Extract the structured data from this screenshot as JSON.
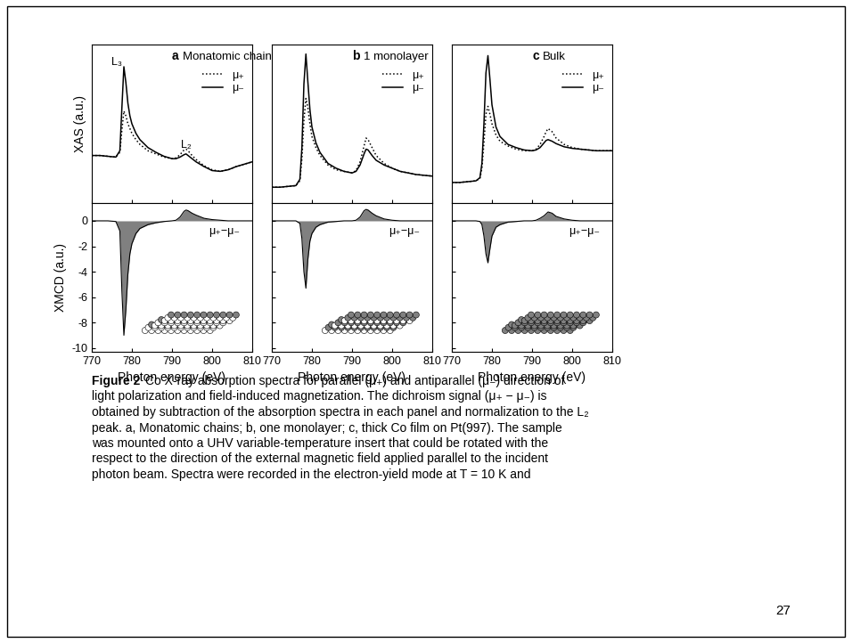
{
  "chart_data": [
    {
      "type": "line",
      "panel": "a",
      "title": "Monatomic chains",
      "ylabel": "XAS (a.u.)",
      "xlim": [
        770,
        810
      ],
      "xticks": [
        770,
        780,
        790,
        800,
        810
      ],
      "ylim": [
        0,
        10
      ],
      "yticks": [],
      "tick_labels": false,
      "legend": "upper right",
      "x": [
        770,
        772,
        774,
        776,
        777,
        777.5,
        778,
        778.5,
        779,
        779.5,
        780,
        781,
        782,
        784,
        786,
        788,
        790,
        791,
        792,
        793,
        793.5,
        794,
        795,
        796,
        798,
        800,
        802,
        804,
        806,
        808,
        810
      ],
      "series": [
        {
          "name": "μ₊",
          "color": "#000000",
          "line_style": "dotted",
          "values": [
            3.0,
            3.0,
            2.95,
            2.9,
            3.2,
            4.6,
            5.8,
            5.5,
            5.0,
            4.7,
            4.4,
            4.0,
            3.7,
            3.3,
            3.1,
            2.9,
            2.8,
            2.85,
            3.05,
            3.35,
            3.4,
            3.3,
            3.0,
            2.75,
            2.35,
            2.1,
            2.0,
            2.1,
            2.3,
            2.45,
            2.6
          ]
        },
        {
          "name": "μ₋",
          "color": "#000000",
          "line_style": "solid",
          "values": [
            3.0,
            3.0,
            2.95,
            2.9,
            3.3,
            6.0,
            8.6,
            7.6,
            6.3,
            5.5,
            5.0,
            4.4,
            4.0,
            3.5,
            3.2,
            2.95,
            2.8,
            2.8,
            2.9,
            3.05,
            3.1,
            3.0,
            2.8,
            2.6,
            2.3,
            2.05,
            2.0,
            2.1,
            2.3,
            2.45,
            2.6
          ]
        }
      ],
      "annotations": [
        {
          "text": "L₃",
          "x": 776.2,
          "y": 9.2
        },
        {
          "text": "L₂",
          "x": 793.5,
          "y": 4.0
        }
      ]
    },
    {
      "type": "area",
      "panel": "a",
      "ylabel": "XMCD (a.u.)",
      "xlabel": "Photon energy (eV)",
      "xlim": [
        770,
        810
      ],
      "xticks": [
        770,
        780,
        790,
        800,
        810
      ],
      "ylim": [
        -10.3,
        1.4
      ],
      "yticks": [
        -10,
        -8,
        -6,
        -4,
        -2,
        0
      ],
      "color": "#808080",
      "x": [
        770,
        772,
        774,
        776,
        777,
        777.5,
        778,
        778.5,
        779,
        779.5,
        780,
        781,
        782,
        784,
        786,
        788,
        790,
        791,
        792,
        793,
        793.5,
        794,
        795,
        796,
        798,
        800,
        802,
        804,
        806,
        808,
        810
      ],
      "values": [
        0,
        0,
        0,
        -0.05,
        -0.8,
        -5.5,
        -9.0,
        -7.0,
        -4.2,
        -2.6,
        -1.8,
        -1.0,
        -0.6,
        -0.3,
        -0.15,
        -0.05,
        0,
        0.05,
        0.3,
        0.75,
        0.85,
        0.8,
        0.6,
        0.45,
        0.2,
        0.1,
        0.05,
        0,
        0,
        0,
        0
      ],
      "annotations": [
        {
          "text": "μ₊−μ₋",
          "x": 803,
          "y": -0.4
        }
      ]
    },
    {
      "type": "line",
      "panel": "b",
      "title": "1 monolayer",
      "xlim": [
        770,
        810
      ],
      "xticks": [
        770,
        780,
        790,
        800,
        810
      ],
      "ylim": [
        0,
        10
      ],
      "yticks": [],
      "tick_labels": false,
      "legend": "upper right",
      "x": [
        770,
        772,
        774,
        776,
        777,
        777.5,
        778,
        778.5,
        779,
        779.5,
        780,
        781,
        782,
        784,
        786,
        788,
        790,
        791,
        792,
        793,
        793.5,
        794,
        795,
        796,
        798,
        800,
        802,
        804,
        806,
        808,
        810
      ],
      "series": [
        {
          "name": "μ₊",
          "color": "#000000",
          "line_style": "dotted",
          "values": [
            1.0,
            1.0,
            1.05,
            1.1,
            1.4,
            2.8,
            5.2,
            6.6,
            6.0,
            5.0,
            4.2,
            3.5,
            3.0,
            2.4,
            2.1,
            2.0,
            1.9,
            2.05,
            2.6,
            3.6,
            4.1,
            4.0,
            3.5,
            3.0,
            2.5,
            2.2,
            2.0,
            1.9,
            1.8,
            1.75,
            1.7
          ]
        },
        {
          "name": "μ₋",
          "color": "#000000",
          "line_style": "solid",
          "values": [
            1.0,
            1.0,
            1.05,
            1.1,
            1.5,
            3.5,
            7.5,
            9.4,
            7.6,
            5.9,
            4.8,
            3.8,
            3.2,
            2.5,
            2.2,
            2.0,
            1.9,
            2.0,
            2.4,
            3.1,
            3.4,
            3.35,
            3.0,
            2.7,
            2.4,
            2.2,
            2.0,
            1.9,
            1.8,
            1.75,
            1.7
          ]
        }
      ]
    },
    {
      "type": "area",
      "panel": "b",
      "xlabel": "Photon energy (eV)",
      "xlim": [
        770,
        810
      ],
      "xticks": [
        770,
        780,
        790,
        800,
        810
      ],
      "ylim": [
        -10.3,
        1.4
      ],
      "yticks": [
        -10,
        -8,
        -6,
        -4,
        -2,
        0
      ],
      "tick_labels": "x",
      "color": "#808080",
      "x": [
        770,
        772,
        774,
        776,
        777,
        777.5,
        778,
        778.5,
        779,
        779.5,
        780,
        781,
        782,
        784,
        786,
        788,
        790,
        791,
        792,
        793,
        793.5,
        794,
        795,
        796,
        798,
        800,
        802,
        804,
        806,
        808,
        810
      ],
      "values": [
        0,
        0,
        0,
        0,
        -0.2,
        -1.4,
        -4.0,
        -5.3,
        -3.0,
        -1.6,
        -1.0,
        -0.5,
        -0.3,
        -0.1,
        -0.05,
        0,
        0,
        0.05,
        0.3,
        0.8,
        0.9,
        0.85,
        0.6,
        0.4,
        0.15,
        0.05,
        0,
        0,
        0,
        0,
        0
      ],
      "annotations": [
        {
          "text": "μ₊−μ₋",
          "x": 803,
          "y": -0.4
        }
      ]
    },
    {
      "type": "line",
      "panel": "c",
      "title": "Bulk",
      "xlim": [
        770,
        810
      ],
      "xticks": [
        770,
        780,
        790,
        800,
        810
      ],
      "ylim": [
        0,
        10
      ],
      "yticks": [],
      "tick_labels": false,
      "legend": "upper right",
      "x": [
        770,
        772,
        774,
        776,
        777,
        777.5,
        778,
        778.5,
        779,
        779.5,
        780,
        781,
        782,
        784,
        786,
        788,
        790,
        791,
        792,
        793,
        793.5,
        794,
        795,
        796,
        798,
        800,
        802,
        804,
        806,
        808,
        810
      ],
      "series": [
        {
          "name": "μ₊",
          "color": "#000000",
          "line_style": "dotted",
          "values": [
            1.3,
            1.3,
            1.35,
            1.4,
            1.55,
            2.2,
            3.8,
            5.6,
            6.1,
            5.6,
            5.0,
            4.3,
            3.9,
            3.6,
            3.4,
            3.3,
            3.3,
            3.4,
            3.7,
            4.2,
            4.5,
            4.7,
            4.5,
            4.1,
            3.7,
            3.5,
            3.4,
            3.35,
            3.3,
            3.3,
            3.3
          ]
        },
        {
          "name": "μ₋",
          "color": "#000000",
          "line_style": "solid",
          "values": [
            1.3,
            1.3,
            1.35,
            1.4,
            1.6,
            2.5,
            5.0,
            8.2,
            9.3,
            7.8,
            6.2,
            4.8,
            4.2,
            3.7,
            3.5,
            3.35,
            3.3,
            3.35,
            3.5,
            3.8,
            3.95,
            4.0,
            3.9,
            3.75,
            3.55,
            3.45,
            3.4,
            3.35,
            3.3,
            3.3,
            3.3
          ]
        }
      ]
    },
    {
      "type": "area",
      "panel": "c",
      "xlabel": "Photon energy (eV)",
      "xlim": [
        770,
        810
      ],
      "xticks": [
        770,
        780,
        790,
        800,
        810
      ],
      "ylim": [
        -10.3,
        1.4
      ],
      "yticks": [
        -10,
        -8,
        -6,
        -4,
        -2,
        0
      ],
      "tick_labels": "x",
      "color": "#808080",
      "x": [
        770,
        772,
        774,
        776,
        777,
        777.5,
        778,
        778.5,
        779,
        779.5,
        780,
        781,
        782,
        784,
        786,
        788,
        790,
        791,
        792,
        793,
        793.5,
        794,
        795,
        796,
        798,
        800,
        802,
        804,
        806,
        808,
        810
      ],
      "values": [
        0,
        0,
        0,
        0,
        -0.05,
        -0.3,
        -1.2,
        -2.6,
        -3.3,
        -2.2,
        -1.2,
        -0.5,
        -0.3,
        -0.1,
        -0.05,
        0,
        0,
        0.05,
        0.2,
        0.4,
        0.55,
        0.7,
        0.6,
        0.35,
        0.15,
        0.05,
        0,
        0,
        0,
        0,
        0
      ],
      "annotations": [
        {
          "text": "μ₊−μ₋",
          "x": 803,
          "y": -0.4
        }
      ]
    }
  ],
  "caption": {
    "label": "Figure 2",
    "lines": [
      "Co X-ray absorption spectra for parallel (μ₊) and antiparallel (μ₋) direction of",
      "light polarization and field-induced magnetization. The dichroism signal (μ₊ − μ₋) is",
      "obtained by subtraction of the absorption spectra in each panel and normalization to the L₂",
      "peak. a, Monatomic chains; b, one monolayer; c, thick Co film on Pt(997). The sample",
      "was mounted onto a UHV variable-temperature insert that could be rotated with the",
      "respect to the direction of the external magnetic field applied parallel to the incident",
      "photon beam. Spectra were recorded in the electron-yield mode at T = 10 K and"
    ]
  },
  "page_number": 27
}
